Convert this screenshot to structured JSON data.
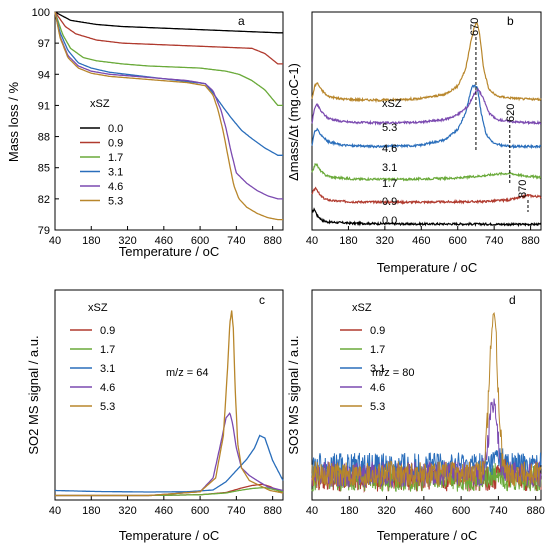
{
  "figure": {
    "panels": [
      "a",
      "b",
      "c",
      "d"
    ],
    "legend_title": "xSZ"
  },
  "colors": {
    "0.0": "#000000",
    "0.9": "#b03a2e",
    "1.7": "#6aaa3a",
    "3.1": "#2a6ebb",
    "4.6": "#7b4ab0",
    "5.3": "#b8862b"
  },
  "chart_data": [
    {
      "panel": "a",
      "type": "line",
      "xlabel": "Temperature / oC",
      "ylabel": "Mass loss / %",
      "xlim": [
        40,
        920
      ],
      "ylim": [
        79,
        100
      ],
      "xticks": [
        40,
        180,
        320,
        460,
        600,
        740,
        880
      ],
      "yticks": [
        79,
        82,
        85,
        88,
        91,
        94,
        97,
        100
      ],
      "legend_title": "xSZ",
      "series": [
        {
          "name": "0.0",
          "x": [
            40,
            100,
            200,
            300,
            400,
            500,
            600,
            700,
            800,
            900
          ],
          "y": [
            100,
            99.2,
            98.8,
            98.6,
            98.5,
            98.4,
            98.3,
            98.2,
            98.1,
            98.0
          ]
        },
        {
          "name": "0.9",
          "x": [
            40,
            80,
            120,
            200,
            300,
            400,
            500,
            600,
            700,
            800,
            850,
            900
          ],
          "y": [
            100,
            98.6,
            97.9,
            97.3,
            97.0,
            96.9,
            96.8,
            96.7,
            96.6,
            96.5,
            96.0,
            95.0
          ]
        },
        {
          "name": "1.7",
          "x": [
            40,
            70,
            100,
            150,
            200,
            300,
            400,
            500,
            600,
            700,
            750,
            800,
            850,
            900
          ],
          "y": [
            100,
            97.8,
            96.5,
            95.6,
            95.3,
            95.0,
            94.8,
            94.7,
            94.6,
            94.3,
            94.0,
            93.4,
            92.5,
            91.0
          ]
        },
        {
          "name": "3.1",
          "x": [
            40,
            60,
            90,
            130,
            180,
            250,
            350,
            450,
            550,
            620,
            650,
            690,
            720,
            760,
            800,
            850,
            900
          ],
          "y": [
            100,
            98.0,
            96.3,
            95.1,
            94.6,
            94.2,
            93.9,
            93.6,
            93.3,
            93.1,
            92.2,
            90.8,
            89.8,
            88.6,
            87.8,
            86.9,
            86.2
          ]
        },
        {
          "name": "4.6",
          "x": [
            40,
            60,
            90,
            130,
            180,
            250,
            350,
            450,
            550,
            620,
            650,
            680,
            700,
            720,
            740,
            780,
            820,
            860,
            900
          ],
          "y": [
            100,
            97.6,
            95.8,
            94.8,
            94.3,
            94.0,
            93.8,
            93.6,
            93.4,
            93.1,
            92.4,
            90.6,
            88.8,
            86.5,
            84.5,
            83.5,
            82.8,
            82.3,
            82.0
          ]
        },
        {
          "name": "5.3",
          "x": [
            40,
            60,
            90,
            130,
            180,
            250,
            350,
            450,
            550,
            620,
            650,
            670,
            690,
            710,
            730,
            750,
            780,
            820,
            860,
            900
          ],
          "y": [
            100,
            97.5,
            95.6,
            94.6,
            94.1,
            93.8,
            93.6,
            93.4,
            93.2,
            92.9,
            92.0,
            90.5,
            88.4,
            85.8,
            83.3,
            82.0,
            81.2,
            80.6,
            80.2,
            80.0
          ]
        }
      ]
    },
    {
      "panel": "b",
      "type": "line",
      "xlabel": "Temperature / oC",
      "ylabel": "Δmass/Δt (mg.oC-1)",
      "xlim": [
        40,
        920
      ],
      "xticks": [
        40,
        180,
        320,
        460,
        600,
        740,
        880
      ],
      "legend_title": "xSZ",
      "annotations": [
        "670",
        "620",
        "870"
      ],
      "series": [
        {
          "name": "0.0",
          "x": [
            40,
            50,
            60,
            80,
            100,
            200,
            400,
            600,
            800,
            920
          ],
          "y": [
            4.5,
            5.3,
            3.4,
            2.0,
            1.5,
            1.1,
            0.9,
            0.9,
            0.8,
            0.8
          ]
        },
        {
          "name": "0.9",
          "x": [
            40,
            55,
            70,
            90,
            120,
            200,
            400,
            600,
            700,
            800,
            850,
            870,
            890,
            920
          ],
          "y": [
            10.0,
            11.8,
            9.5,
            8.3,
            7.8,
            7.5,
            7.4,
            7.5,
            7.6,
            8.1,
            9.0,
            9.5,
            9.2,
            9.0
          ]
        },
        {
          "name": "1.7",
          "x": [
            40,
            55,
            70,
            90,
            120,
            200,
            400,
            600,
            700,
            750,
            800,
            850,
            920
          ],
          "y": [
            16.5,
            19.0,
            17.0,
            15.5,
            14.8,
            14.3,
            14.2,
            14.6,
            15.3,
            15.8,
            16.0,
            15.3,
            14.8
          ]
        },
        {
          "name": "3.1",
          "x": [
            40,
            50,
            60,
            75,
            100,
            150,
            200,
            300,
            450,
            550,
            600,
            630,
            655,
            675,
            690,
            710,
            740,
            780,
            820,
            920
          ],
          "y": [
            24.5,
            28.5,
            29.0,
            27.5,
            25.5,
            24.5,
            24.2,
            24.0,
            24.3,
            26.0,
            29.0,
            34.0,
            42.0,
            42.0,
            34.0,
            27.5,
            24.8,
            24.2,
            24.0,
            24.0
          ]
        },
        {
          "name": "4.6",
          "x": [
            40,
            50,
            60,
            75,
            100,
            150,
            200,
            300,
            450,
            550,
            600,
            640,
            665,
            680,
            700,
            720,
            750,
            800,
            850,
            920
          ],
          "y": [
            31.0,
            35.5,
            36.5,
            34.5,
            32.5,
            31.5,
            31.2,
            31.0,
            31.2,
            32.0,
            33.5,
            36.0,
            40.0,
            41.0,
            38.0,
            34.0,
            32.0,
            31.5,
            31.2,
            31.0
          ]
        },
        {
          "name": "5.3",
          "x": [
            40,
            50,
            60,
            75,
            100,
            150,
            200,
            300,
            450,
            550,
            600,
            630,
            650,
            665,
            675,
            685,
            700,
            720,
            750,
            800,
            850,
            920
          ],
          "y": [
            38.0,
            42.0,
            43.0,
            41.0,
            39.0,
            38.2,
            38.0,
            37.8,
            38.2,
            39.5,
            42.0,
            47.0,
            55.0,
            60.0,
            61.0,
            57.0,
            47.0,
            41.0,
            39.0,
            38.5,
            38.2,
            38.0
          ]
        }
      ]
    },
    {
      "panel": "c",
      "type": "line",
      "xlabel": "Temperature / oC",
      "ylabel": "SO2 MS signal / a.u.",
      "annotation": "m/z = 64",
      "xlim": [
        40,
        920
      ],
      "xticks": [
        40,
        180,
        320,
        460,
        600,
        740,
        880
      ],
      "legend_title": "xSZ",
      "series": [
        {
          "name": "0.9",
          "x": [
            40,
            400,
            600,
            700,
            760,
            800,
            840,
            870,
            900,
            920
          ],
          "y": [
            1.0,
            1.0,
            1.3,
            2.2,
            4.0,
            5.0,
            5.5,
            4.6,
            3.0,
            2.0
          ]
        },
        {
          "name": "1.7",
          "x": [
            40,
            400,
            600,
            700,
            750,
            800,
            850,
            880,
            920
          ],
          "y": [
            1.0,
            1.0,
            1.3,
            2.0,
            3.0,
            3.8,
            4.2,
            3.5,
            2.5
          ]
        },
        {
          "name": "3.1",
          "x": [
            40,
            200,
            400,
            550,
            650,
            700,
            740,
            780,
            810,
            830,
            850,
            880,
            920
          ],
          "y": [
            3.0,
            2.6,
            2.4,
            2.5,
            3.2,
            6.5,
            11.0,
            15.5,
            20.0,
            25.0,
            24.0,
            15.0,
            7.0
          ]
        },
        {
          "name": "4.6",
          "x": [
            40,
            400,
            600,
            650,
            680,
            700,
            715,
            725,
            740,
            760,
            790,
            820,
            860,
            920
          ],
          "y": [
            1.0,
            1.0,
            2.5,
            8.0,
            22.0,
            32.0,
            34.0,
            30.0,
            20.0,
            12.0,
            9.0,
            7.0,
            4.5,
            3.0
          ]
        },
        {
          "name": "5.3",
          "x": [
            40,
            400,
            600,
            660,
            690,
            705,
            715,
            722,
            728,
            735,
            745,
            760,
            790,
            830,
            870,
            920
          ],
          "y": [
            1.0,
            1.0,
            2.5,
            8.0,
            25.0,
            50.0,
            70.0,
            75.0,
            68.0,
            45.0,
            22.0,
            12.0,
            7.0,
            5.0,
            3.0,
            2.0
          ]
        }
      ]
    },
    {
      "panel": "d",
      "type": "line",
      "xlabel": "Temperature / oC",
      "ylabel": "SO3 MS signal / a.u.",
      "annotation": "m/z = 80",
      "xlim": [
        40,
        900
      ],
      "xticks": [
        40,
        180,
        320,
        460,
        600,
        740,
        880
      ],
      "legend_title": "xSZ",
      "series": [
        {
          "name": "0.9",
          "peak_x": 760,
          "peak_y": 6,
          "base": 4
        },
        {
          "name": "1.7",
          "peak_x": 740,
          "peak_y": 6,
          "base": 4
        },
        {
          "name": "3.1",
          "peak_x": 740,
          "peak_y": 9,
          "base": 7
        },
        {
          "name": "4.6",
          "peak_x": 720,
          "peak_y": 22,
          "base": 5
        },
        {
          "name": "5.3",
          "peak_x": 722,
          "peak_y": 42,
          "base": 5
        }
      ]
    }
  ]
}
